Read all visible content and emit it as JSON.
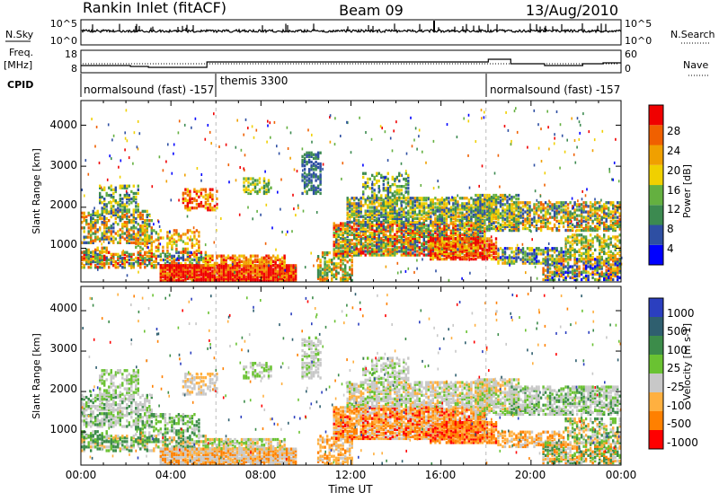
{
  "header": {
    "station": "Rankin Inlet (fitACF)",
    "beam": "Beam 09",
    "date": "13/Aug/2010"
  },
  "left_labels": {
    "nsky": "N.Sky",
    "freq": "Freq.",
    "freq_unit": "[MHz]",
    "cpid": "CPID"
  },
  "right_labels": {
    "nsearch": "N.Search",
    "nave": "Nave"
  },
  "nsky_ticks": [
    "10^5",
    "10^0"
  ],
  "nsearch_ticks": [
    "10^5",
    "10^0"
  ],
  "freq_ticks": [
    "18",
    "8"
  ],
  "nave_ticks": [
    "60",
    "0"
  ],
  "cpid_segments": [
    "normalsound (fast) -157",
    "themis 3300",
    "normalsound (fast) -157"
  ],
  "colors": {
    "power": [
      "#0000ff",
      "#2e4fa3",
      "#3c8a50",
      "#64b040",
      "#f0d000",
      "#f0a000",
      "#f06000",
      "#f00000"
    ],
    "velocity": [
      "#2b3fbf",
      "#2f5f6f",
      "#3c8c4a",
      "#6ac232",
      "#c8c8c8",
      "#ffb040",
      "#ff8000",
      "#ff0000"
    ]
  },
  "chart_data": [
    {
      "type": "heatmap",
      "panel": "power",
      "ylabel": "Slant Range [km]",
      "yticks": [
        "1000",
        "2000",
        "3000",
        "4000"
      ],
      "xticks": [
        "00:00",
        "04:00",
        "08:00",
        "12:00",
        "16:00",
        "20:00",
        "00:00"
      ],
      "ylim": [
        180,
        4600
      ],
      "colorbar_label": "Power [dB]",
      "colorbar_ticks": [
        "4",
        "8",
        "12",
        "16",
        "20",
        "24",
        "28"
      ],
      "colorbar_range": [
        0,
        32
      ]
    },
    {
      "type": "heatmap",
      "panel": "velocity",
      "ylabel": "Slant Range [km]",
      "yticks": [
        "1000",
        "2000",
        "3000",
        "4000"
      ],
      "xticks": [
        "00:00",
        "04:00",
        "08:00",
        "12:00",
        "16:00",
        "20:00",
        "00:00"
      ],
      "xlabel": "Time UT",
      "ylim": [
        180,
        4600
      ],
      "colorbar_label": "Velocity [m s-1]",
      "colorbar_ticks": [
        "1000",
        "500",
        "100",
        "25",
        "-25",
        "-100",
        "-500",
        "-1000"
      ]
    }
  ]
}
